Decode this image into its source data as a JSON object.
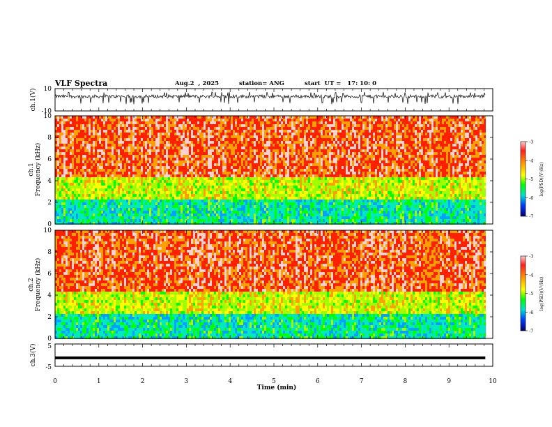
{
  "header": {
    "title": "VLF Spectra",
    "date": "Aug.2  , 2025",
    "station": "station= ANG",
    "start": "start  UT =   17: 10: 0"
  },
  "chart_data": [
    {
      "type": "line",
      "name": "ch1-waveform",
      "ylabel": "ch.1(V)",
      "ylim": [
        -10,
        10
      ],
      "yticklabels": [
        "10",
        "-10"
      ],
      "xlim": [
        0,
        10
      ],
      "trace_range_min": [
        0,
        9.83
      ],
      "baseline": 3,
      "noise_range": [
        -4,
        7
      ]
    },
    {
      "type": "heatmap",
      "name": "ch1-spectrogram",
      "ylabel_line1": "ch.1",
      "ylabel_line2": "Frequency  (kHz)",
      "ylim": [
        0,
        10
      ],
      "yticks": [
        0,
        2,
        4,
        6,
        8,
        10
      ],
      "xlim": [
        0,
        10
      ],
      "data_extent_min": [
        0,
        9.83
      ],
      "colorbar": {
        "range": [
          -7,
          -3
        ],
        "ticks": [
          "-3",
          "-4",
          "-5",
          "-6",
          "-7"
        ],
        "label": "log(PSD)(V²/Hz)"
      },
      "colors": [
        "#000078",
        "#0000ff",
        "#00a0ff",
        "#00e8c0",
        "#00ff00",
        "#a0ff00",
        "#ffff00",
        "#ffa000",
        "#ff2000",
        "#ffd0d0"
      ]
    },
    {
      "type": "heatmap",
      "name": "ch2-spectrogram",
      "ylabel_line1": "ch.2",
      "ylabel_line2": "Frequency  (kHz)",
      "ylim": [
        0,
        10
      ],
      "yticks": [
        0,
        2,
        4,
        6,
        8,
        10
      ],
      "xlim": [
        0,
        10
      ],
      "data_extent_min": [
        0,
        9.83
      ],
      "colorbar": {
        "range": [
          -7,
          -3
        ],
        "ticks": [
          "-3",
          "-4",
          "-5",
          "-6",
          "-7"
        ],
        "label": "log(PSD)(V²/Hz)"
      },
      "colors": [
        "#000078",
        "#0000ff",
        "#00a0ff",
        "#00e8c0",
        "#00ff00",
        "#a0ff00",
        "#ffff00",
        "#ffa000",
        "#ff2000",
        "#ffd0d0"
      ]
    },
    {
      "type": "line",
      "name": "ch3-waveform",
      "ylabel": "ch.3(V)",
      "ylim": [
        -5,
        5
      ],
      "yticklabels": [
        "5",
        "-5"
      ],
      "xlim": [
        0,
        10
      ],
      "constant_value": -1.2
    }
  ],
  "xaxis": {
    "label": "Time  (min)",
    "ticks": [
      0,
      1,
      2,
      3,
      4,
      5,
      6,
      7,
      8,
      9,
      10
    ]
  }
}
